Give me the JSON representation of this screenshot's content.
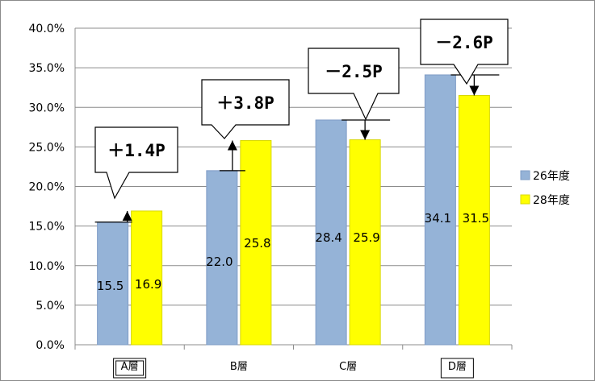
{
  "chart_data": {
    "type": "bar",
    "categories": [
      "A層",
      "B層",
      "C層",
      "D層"
    ],
    "boxed_categories": [
      "A層",
      "D層"
    ],
    "series": [
      {
        "name": "26年度",
        "values": [
          15.5,
          22.0,
          28.4,
          34.1
        ],
        "color": "#95b3d7"
      },
      {
        "name": "28年度",
        "values": [
          16.9,
          25.8,
          25.9,
          31.5
        ],
        "color": "#ffff00"
      }
    ],
    "data_labels": [
      [
        "15.5",
        "22.0",
        "28.4",
        "34.1"
      ],
      [
        "16.9",
        "25.8",
        "25.9",
        "31.5"
      ]
    ],
    "ylim": [
      0,
      40
    ],
    "yticks": [
      "0.0%",
      "5.0%",
      "10.0%",
      "15.0%",
      "20.0%",
      "25.0%",
      "30.0%",
      "35.0%",
      "40.0%"
    ],
    "grid": true,
    "legend_position": "right",
    "annotations": [
      "＋1.4P",
      "＋3.8P",
      "－2.5P",
      "－2.6P"
    ],
    "title": "",
    "xlabel": "",
    "ylabel": ""
  }
}
